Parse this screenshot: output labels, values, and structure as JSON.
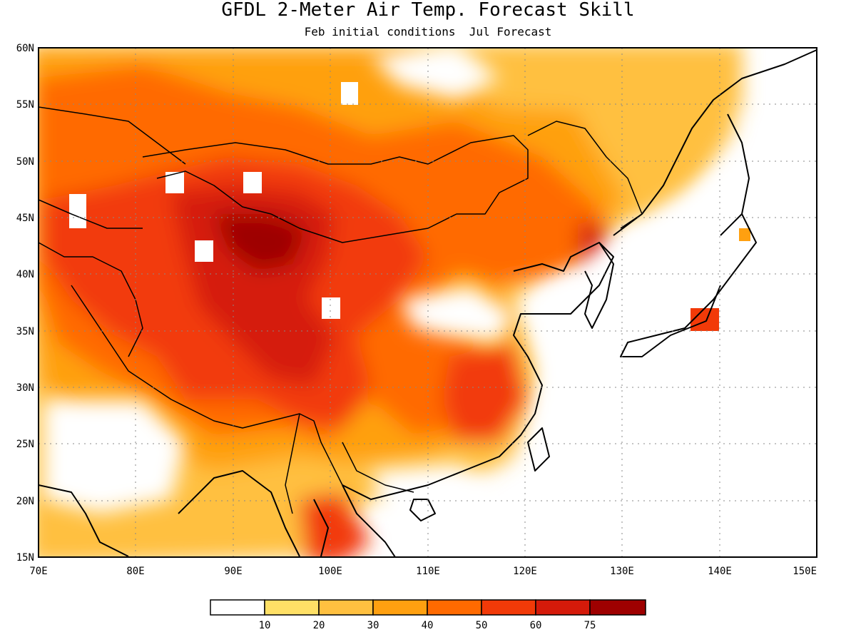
{
  "title": "GFDL 2-Meter Air Temp. Forecast Skill",
  "subtitle": "Feb initial conditions  Jul Forecast",
  "map": {
    "lon_range": [
      70,
      150
    ],
    "lat_range": [
      15,
      60
    ],
    "lon_ticks": [
      "70E",
      "80E",
      "90E",
      "100E",
      "110E",
      "120E",
      "130E",
      "140E",
      "150E"
    ],
    "lat_ticks": [
      "60N",
      "55N",
      "50N",
      "45N",
      "40N",
      "35N",
      "30N",
      "25N",
      "20N",
      "15N"
    ],
    "grid": "dotted"
  },
  "legend": {
    "thresholds": [
      "10",
      "20",
      "30",
      "40",
      "50",
      "60",
      "75"
    ],
    "colors": [
      "#ffffff",
      "#ffe066",
      "#ffc040",
      "#ffa010",
      "#ff6a00",
      "#f23a08",
      "#d51a0a",
      "#9e0000"
    ]
  }
}
